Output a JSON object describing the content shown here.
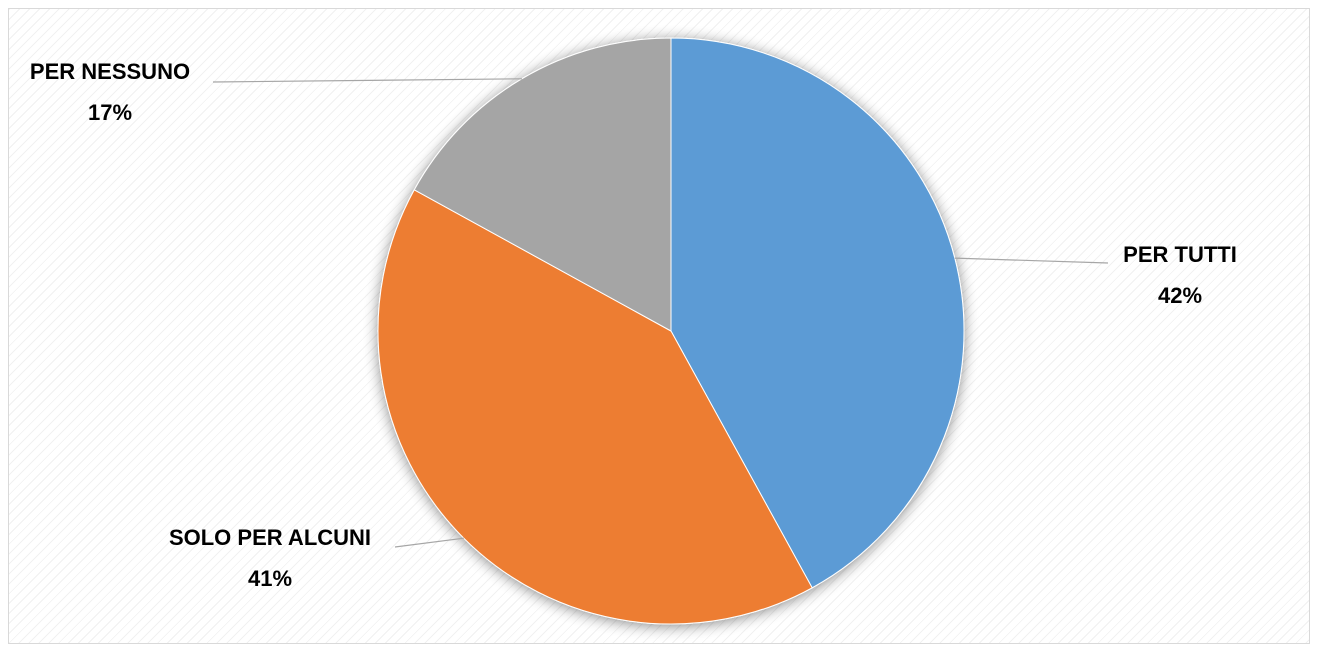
{
  "chart_data": {
    "type": "pie",
    "title": "",
    "start_angle_deg": 0,
    "direction": "clockwise",
    "slices": [
      {
        "label": "PER TUTTI",
        "value": 42,
        "value_label": "42%",
        "color": "#5B9BD5"
      },
      {
        "label": "SOLO PER ALCUNI",
        "value": 41,
        "value_label": "41%",
        "color": "#ED7D31"
      },
      {
        "label": "PER NESSUNO",
        "value": 17,
        "value_label": "17%",
        "color": "#A5A5A5"
      }
    ],
    "legend": "none",
    "data_labels": "outside-with-leader-lines",
    "background": "diagonal-hatch"
  }
}
